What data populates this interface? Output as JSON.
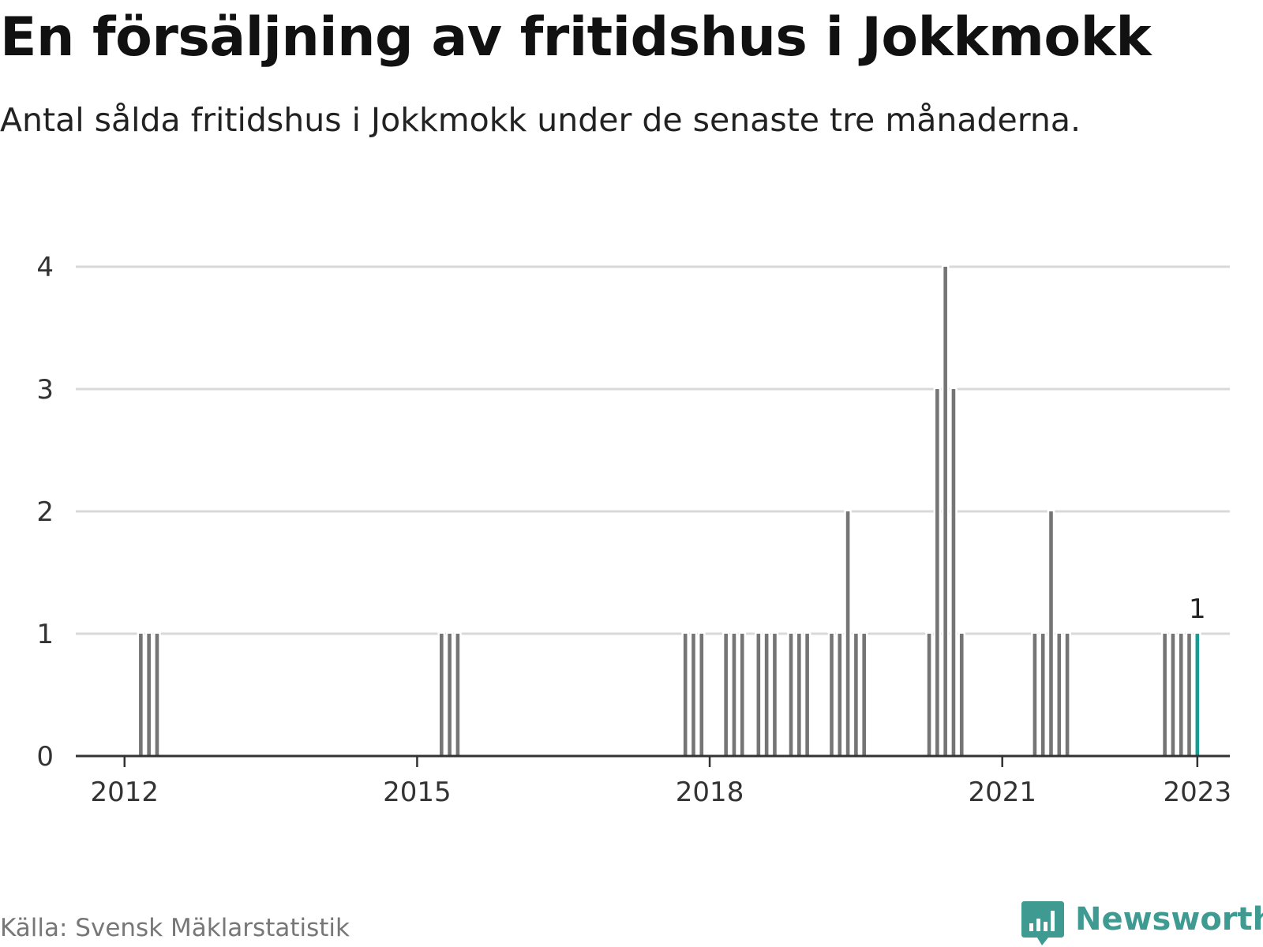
{
  "title": "En försäljning av fritidshus i Jokkmokk",
  "subtitle": "Antal sålda fritidshus i Jokkmokk under de senaste tre månaderna.",
  "source": "Källa: Svensk Mäklarstatistik",
  "brand": {
    "name": "Newsworthy",
    "icon": "newsworthy-logo-icon",
    "color": "#3f9a91"
  },
  "colors": {
    "bar": "#757575",
    "highlight": "#179c93",
    "grid": "#d9d9d9",
    "axis": "#333333"
  },
  "chart_data": {
    "type": "bar",
    "x_axis": {
      "type": "time",
      "range": [
        "2011-07",
        "2023-05"
      ],
      "ticks": [
        "2012",
        "2015",
        "2018",
        "2021",
        "2023"
      ]
    },
    "y_axis": {
      "range": [
        0,
        4
      ],
      "ticks": [
        "0",
        "1",
        "2",
        "3",
        "4"
      ]
    },
    "grid": true,
    "legend": "none",
    "bars": [
      {
        "date": "2012-03",
        "value": 1
      },
      {
        "date": "2012-04",
        "value": 1
      },
      {
        "date": "2012-05",
        "value": 1
      },
      {
        "date": "2015-04",
        "value": 1
      },
      {
        "date": "2015-05",
        "value": 1
      },
      {
        "date": "2015-06",
        "value": 1
      },
      {
        "date": "2017-10",
        "value": 1
      },
      {
        "date": "2017-11",
        "value": 1
      },
      {
        "date": "2017-12",
        "value": 1
      },
      {
        "date": "2018-03",
        "value": 1
      },
      {
        "date": "2018-04",
        "value": 1
      },
      {
        "date": "2018-05",
        "value": 1
      },
      {
        "date": "2018-07",
        "value": 1
      },
      {
        "date": "2018-08",
        "value": 1
      },
      {
        "date": "2018-09",
        "value": 1
      },
      {
        "date": "2018-11",
        "value": 1
      },
      {
        "date": "2018-12",
        "value": 1
      },
      {
        "date": "2019-01",
        "value": 1
      },
      {
        "date": "2019-04",
        "value": 1
      },
      {
        "date": "2019-05",
        "value": 1
      },
      {
        "date": "2019-06",
        "value": 2
      },
      {
        "date": "2019-07",
        "value": 1
      },
      {
        "date": "2019-08",
        "value": 1
      },
      {
        "date": "2020-04",
        "value": 1
      },
      {
        "date": "2020-05",
        "value": 3
      },
      {
        "date": "2020-06",
        "value": 4
      },
      {
        "date": "2020-07",
        "value": 3
      },
      {
        "date": "2020-08",
        "value": 1
      },
      {
        "date": "2021-05",
        "value": 1
      },
      {
        "date": "2021-06",
        "value": 1
      },
      {
        "date": "2021-07",
        "value": 2
      },
      {
        "date": "2021-08",
        "value": 1
      },
      {
        "date": "2021-09",
        "value": 1
      },
      {
        "date": "2022-09",
        "value": 1
      },
      {
        "date": "2022-10",
        "value": 1
      },
      {
        "date": "2022-11",
        "value": 1
      },
      {
        "date": "2022-12",
        "value": 1
      },
      {
        "date": "2023-01",
        "value": 1,
        "highlight": true
      }
    ],
    "annotations": [
      {
        "date": "2023-01",
        "text": "1"
      }
    ]
  }
}
